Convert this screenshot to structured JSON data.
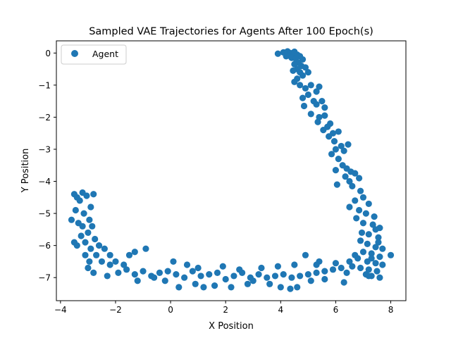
{
  "chart_data": {
    "type": "scatter",
    "title": "Sampled VAE Trajectories for Agents After 100 Epoch(s)",
    "xlabel": "X Position",
    "ylabel": "Y Position",
    "xlim": [
      -4.15,
      8.55
    ],
    "ylim": [
      -7.72,
      0.38
    ],
    "xticks": [
      -4,
      -2,
      0,
      2,
      4,
      6,
      8
    ],
    "xtick_labels": [
      "−4",
      "−2",
      "0",
      "2",
      "4",
      "6",
      "8"
    ],
    "yticks": [
      0,
      -1,
      -2,
      -3,
      -4,
      -5,
      -6,
      -7
    ],
    "ytick_labels": [
      "0",
      "−1",
      "−2",
      "−3",
      "−4",
      "−5",
      "−6",
      "−7"
    ],
    "grid": false,
    "legend": {
      "position": "upper-left",
      "entries": [
        "Agent"
      ]
    },
    "color": "#1f77b4",
    "series": [
      {
        "name": "Agent",
        "points": [
          [
            3.9,
            -0.02
          ],
          [
            4.1,
            0.02
          ],
          [
            4.25,
            0.05
          ],
          [
            4.35,
            0.0
          ],
          [
            4.45,
            -0.03
          ],
          [
            4.5,
            0.04
          ],
          [
            4.3,
            -0.08
          ],
          [
            4.6,
            -0.05
          ],
          [
            4.7,
            -0.1
          ],
          [
            4.2,
            -0.1
          ],
          [
            4.4,
            -0.15
          ],
          [
            4.55,
            -0.18
          ],
          [
            4.8,
            -0.2
          ],
          [
            4.65,
            -0.3
          ],
          [
            4.5,
            -0.35
          ],
          [
            4.75,
            -0.4
          ],
          [
            4.9,
            -0.45
          ],
          [
            4.6,
            -0.5
          ],
          [
            4.45,
            -0.55
          ],
          [
            4.7,
            -0.6
          ],
          [
            4.8,
            -0.7
          ],
          [
            4.6,
            -0.8
          ],
          [
            5.0,
            -0.6
          ],
          [
            4.5,
            -0.9
          ],
          [
            4.7,
            -1.0
          ],
          [
            4.9,
            -1.1
          ],
          [
            5.1,
            -1.0
          ],
          [
            5.3,
            -1.2
          ],
          [
            5.0,
            -1.3
          ],
          [
            4.8,
            -1.4
          ],
          [
            5.4,
            -1.05
          ],
          [
            5.2,
            -1.5
          ],
          [
            4.85,
            -1.65
          ],
          [
            5.5,
            -1.5
          ],
          [
            5.3,
            -1.6
          ],
          [
            5.1,
            -1.9
          ],
          [
            5.6,
            -1.7
          ],
          [
            5.4,
            -2.0
          ],
          [
            5.35,
            -2.15
          ],
          [
            5.6,
            -1.95
          ],
          [
            5.7,
            -2.3
          ],
          [
            5.55,
            -2.4
          ],
          [
            5.8,
            -2.2
          ],
          [
            5.9,
            -2.5
          ],
          [
            5.75,
            -2.6
          ],
          [
            6.1,
            -2.45
          ],
          [
            5.95,
            -2.75
          ],
          [
            6.2,
            -2.9
          ],
          [
            6.0,
            -3.0
          ],
          [
            5.85,
            -3.15
          ],
          [
            6.3,
            -3.05
          ],
          [
            6.1,
            -3.3
          ],
          [
            6.45,
            -2.85
          ],
          [
            6.25,
            -3.5
          ],
          [
            6.4,
            -3.6
          ],
          [
            6.0,
            -3.65
          ],
          [
            6.55,
            -3.7
          ],
          [
            6.35,
            -3.85
          ],
          [
            6.7,
            -3.75
          ],
          [
            6.5,
            -4.0
          ],
          [
            6.85,
            -3.9
          ],
          [
            6.6,
            -4.15
          ],
          [
            6.9,
            -4.3
          ],
          [
            6.05,
            -4.1
          ],
          [
            7.0,
            -4.5
          ],
          [
            6.7,
            -4.6
          ],
          [
            7.2,
            -4.7
          ],
          [
            6.5,
            -4.8
          ],
          [
            6.85,
            -4.9
          ],
          [
            7.1,
            -5.0
          ],
          [
            7.4,
            -5.1
          ],
          [
            6.75,
            -5.15
          ],
          [
            7.0,
            -5.3
          ],
          [
            7.35,
            -5.35
          ],
          [
            7.6,
            -5.45
          ],
          [
            6.95,
            -5.6
          ],
          [
            7.2,
            -5.65
          ],
          [
            7.55,
            -5.75
          ],
          [
            6.9,
            -5.85
          ],
          [
            7.15,
            -5.95
          ],
          [
            7.45,
            -6.05
          ],
          [
            7.7,
            -6.1
          ],
          [
            7.0,
            -6.2
          ],
          [
            7.3,
            -6.25
          ],
          [
            7.6,
            -6.35
          ],
          [
            8.0,
            -6.3
          ],
          [
            6.8,
            -6.4
          ],
          [
            7.15,
            -6.5
          ],
          [
            7.45,
            -6.55
          ],
          [
            7.7,
            -6.6
          ],
          [
            6.6,
            -6.65
          ],
          [
            6.9,
            -6.7
          ],
          [
            7.2,
            -6.75
          ],
          [
            7.5,
            -6.8
          ],
          [
            6.4,
            -6.85
          ],
          [
            7.1,
            -6.9
          ],
          [
            7.3,
            -6.95
          ],
          [
            6.2,
            -6.7
          ],
          [
            5.9,
            -6.75
          ],
          [
            5.6,
            -6.8
          ],
          [
            5.3,
            -6.85
          ],
          [
            5.0,
            -6.9
          ],
          [
            4.7,
            -6.95
          ],
          [
            4.4,
            -7.0
          ],
          [
            4.1,
            -6.9
          ],
          [
            3.8,
            -6.95
          ],
          [
            3.5,
            -7.0
          ],
          [
            3.2,
            -6.9
          ],
          [
            2.9,
            -7.0
          ],
          [
            2.6,
            -6.85
          ],
          [
            2.3,
            -6.95
          ],
          [
            2.0,
            -7.05
          ],
          [
            1.7,
            -6.85
          ],
          [
            1.4,
            -6.9
          ],
          [
            1.1,
            -6.95
          ],
          [
            0.8,
            -6.8
          ],
          [
            0.5,
            -7.0
          ],
          [
            0.2,
            -6.9
          ],
          [
            -0.1,
            -6.8
          ],
          [
            -0.4,
            -6.85
          ],
          [
            -0.7,
            -6.95
          ],
          [
            -1.0,
            -6.8
          ],
          [
            -1.3,
            -6.9
          ],
          [
            -1.6,
            -6.75
          ],
          [
            -1.9,
            -6.85
          ],
          [
            -2.2,
            -6.6
          ],
          [
            -2.5,
            -6.5
          ],
          [
            -2.7,
            -6.3
          ],
          [
            -2.9,
            -6.1
          ],
          [
            -3.1,
            -5.9
          ],
          [
            -3.0,
            -5.6
          ],
          [
            -3.2,
            -5.4
          ],
          [
            -2.95,
            -5.2
          ],
          [
            -3.15,
            -5.0
          ],
          [
            -2.9,
            -4.8
          ],
          [
            -3.3,
            -4.6
          ],
          [
            -3.05,
            -4.45
          ],
          [
            -3.5,
            -4.4
          ],
          [
            -3.4,
            -4.5
          ],
          [
            -3.2,
            -4.35
          ],
          [
            -2.8,
            -4.4
          ],
          [
            -3.45,
            -4.9
          ],
          [
            -3.35,
            -5.3
          ],
          [
            -3.25,
            -5.7
          ],
          [
            -3.4,
            -6.0
          ],
          [
            -3.1,
            -6.3
          ],
          [
            -2.95,
            -6.5
          ],
          [
            -3.6,
            -5.2
          ],
          [
            -3.5,
            -5.9
          ],
          [
            -2.85,
            -5.4
          ],
          [
            -2.75,
            -5.8
          ],
          [
            -2.6,
            -6.0
          ],
          [
            -2.4,
            -6.1
          ],
          [
            -2.2,
            -6.3
          ],
          [
            -2.0,
            -6.5
          ],
          [
            -1.7,
            -6.6
          ],
          [
            -1.5,
            -6.3
          ],
          [
            -1.3,
            -6.2
          ],
          [
            -0.9,
            -6.1
          ],
          [
            -1.2,
            -7.1
          ],
          [
            -0.6,
            -7.0
          ],
          [
            -0.2,
            -7.1
          ],
          [
            0.3,
            -7.3
          ],
          [
            0.9,
            -7.2
          ],
          [
            1.2,
            -7.3
          ],
          [
            1.6,
            -7.25
          ],
          [
            2.2,
            -7.3
          ],
          [
            2.8,
            -7.2
          ],
          [
            3.0,
            -7.1
          ],
          [
            3.6,
            -7.2
          ],
          [
            4.0,
            -7.3
          ],
          [
            4.35,
            -7.35
          ],
          [
            4.6,
            -7.3
          ],
          [
            5.1,
            -7.1
          ],
          [
            5.6,
            -7.05
          ],
          [
            6.3,
            -7.15
          ],
          [
            7.6,
            -7.0
          ],
          [
            7.2,
            -6.95
          ],
          [
            4.9,
            -6.3
          ],
          [
            5.4,
            -6.5
          ],
          [
            -2.3,
            -6.95
          ],
          [
            -3.0,
            -6.7
          ],
          [
            -2.8,
            -6.85
          ],
          [
            0.1,
            -6.5
          ],
          [
            0.6,
            -6.6
          ],
          [
            1.0,
            -6.7
          ],
          [
            1.9,
            -6.65
          ],
          [
            2.5,
            -6.75
          ],
          [
            3.3,
            -6.7
          ],
          [
            3.9,
            -6.65
          ],
          [
            4.5,
            -6.6
          ],
          [
            5.3,
            -6.6
          ],
          [
            6.0,
            -6.55
          ],
          [
            6.5,
            -6.5
          ],
          [
            6.7,
            -6.3
          ],
          [
            7.3,
            -6.4
          ],
          [
            7.55,
            -5.9
          ],
          [
            7.45,
            -5.5
          ]
        ]
      }
    ]
  }
}
